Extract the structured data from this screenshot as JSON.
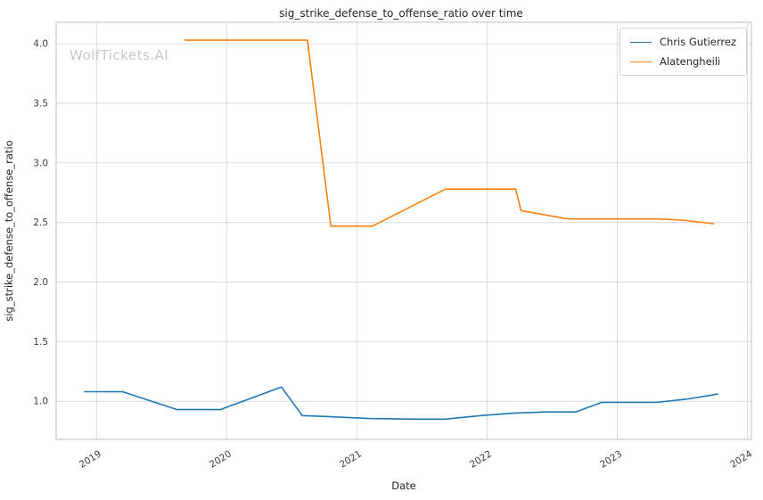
{
  "watermark": {
    "text": "WolfTickets.AI"
  },
  "chart_data": {
    "type": "line",
    "title": "sig_strike_defense_to_offense_ratio over time",
    "xlabel": "Date",
    "ylabel": "sig_strike_defense_to_offense_ratio",
    "xlim": [
      2018.69,
      2024.03
    ],
    "ylim": [
      0.68,
      4.18
    ],
    "xticks": [
      2019,
      2020,
      2021,
      2022,
      2023,
      2024
    ],
    "yticks": [
      1.0,
      1.5,
      2.0,
      2.5,
      3.0,
      3.5,
      4.0
    ],
    "grid": true,
    "legend_position": "upper right",
    "series": [
      {
        "name": "Chris Gutierrez",
        "color": "#1f77b4",
        "points": [
          [
            2018.91,
            1.08
          ],
          [
            2019.2,
            1.08
          ],
          [
            2019.62,
            0.93
          ],
          [
            2019.95,
            0.93
          ],
          [
            2020.42,
            1.12
          ],
          [
            2020.58,
            0.88
          ],
          [
            2020.8,
            0.87
          ],
          [
            2021.1,
            0.855
          ],
          [
            2021.45,
            0.85
          ],
          [
            2021.68,
            0.85
          ],
          [
            2021.95,
            0.88
          ],
          [
            2022.2,
            0.9
          ],
          [
            2022.45,
            0.91
          ],
          [
            2022.68,
            0.91
          ],
          [
            2022.88,
            0.99
          ],
          [
            2023.3,
            0.99
          ],
          [
            2023.55,
            1.02
          ],
          [
            2023.77,
            1.06
          ]
        ]
      },
      {
        "name": "Alatengheili",
        "color": "#ff7f0e",
        "points": [
          [
            2019.68,
            4.03
          ],
          [
            2020.1,
            4.03
          ],
          [
            2020.62,
            4.03
          ],
          [
            2020.8,
            2.47
          ],
          [
            2021.12,
            2.47
          ],
          [
            2021.68,
            2.78
          ],
          [
            2022.22,
            2.78
          ],
          [
            2022.26,
            2.6
          ],
          [
            2022.62,
            2.53
          ],
          [
            2023.3,
            2.53
          ],
          [
            2023.5,
            2.52
          ],
          [
            2023.74,
            2.49
          ]
        ]
      }
    ]
  }
}
